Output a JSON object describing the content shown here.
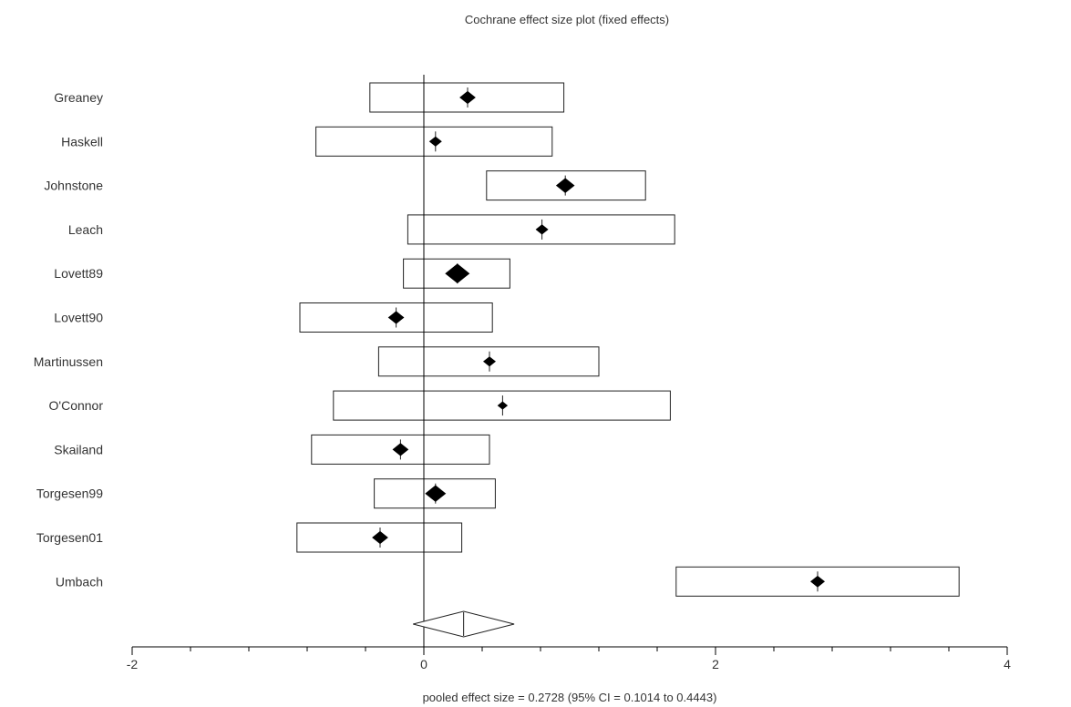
{
  "chart_data": {
    "type": "forest",
    "title": "Cochrane effect size plot (fixed effects)",
    "xlabel": "pooled effect size = 0.2728  (95% CI = 0.1014 to 0.4443)",
    "xlim": [
      -2,
      4
    ],
    "x_ticks": [
      -2,
      0,
      2,
      4
    ],
    "x_tick_labels": [
      "-2",
      "0",
      "2",
      "4"
    ],
    "studies": [
      {
        "name": "Greaney",
        "effect": 0.3,
        "ci_low": -0.37,
        "ci_high": 0.96,
        "weight": 2
      },
      {
        "name": "Haskell",
        "effect": 0.08,
        "ci_low": -0.74,
        "ci_high": 0.88,
        "weight": 1
      },
      {
        "name": "Johnstone",
        "effect": 0.97,
        "ci_low": 0.43,
        "ci_high": 1.52,
        "weight": 3
      },
      {
        "name": "Leach",
        "effect": 0.81,
        "ci_low": -0.11,
        "ci_high": 1.72,
        "weight": 1
      },
      {
        "name": "Lovett89",
        "effect": 0.23,
        "ci_low": -0.14,
        "ci_high": 0.59,
        "weight": 6
      },
      {
        "name": "Lovett90",
        "effect": -0.19,
        "ci_low": -0.85,
        "ci_high": 0.47,
        "weight": 2
      },
      {
        "name": "Martinussen",
        "effect": 0.45,
        "ci_low": -0.31,
        "ci_high": 1.2,
        "weight": 1
      },
      {
        "name": "O'Connor",
        "effect": 0.54,
        "ci_low": -0.62,
        "ci_high": 1.69,
        "weight": 0.5
      },
      {
        "name": "Skailand",
        "effect": -0.16,
        "ci_low": -0.77,
        "ci_high": 0.45,
        "weight": 2
      },
      {
        "name": "Torgesen99",
        "effect": 0.08,
        "ci_low": -0.34,
        "ci_high": 0.49,
        "weight": 4
      },
      {
        "name": "Torgesen01",
        "effect": -0.3,
        "ci_low": -0.87,
        "ci_high": 0.26,
        "weight": 2
      },
      {
        "name": "Umbach",
        "effect": 2.7,
        "ci_low": 1.73,
        "ci_high": 3.67,
        "weight": 1.5
      }
    ],
    "pooled": {
      "effect": 0.2728,
      "ci_low": 0.1014,
      "ci_high": 0.4443
    }
  }
}
